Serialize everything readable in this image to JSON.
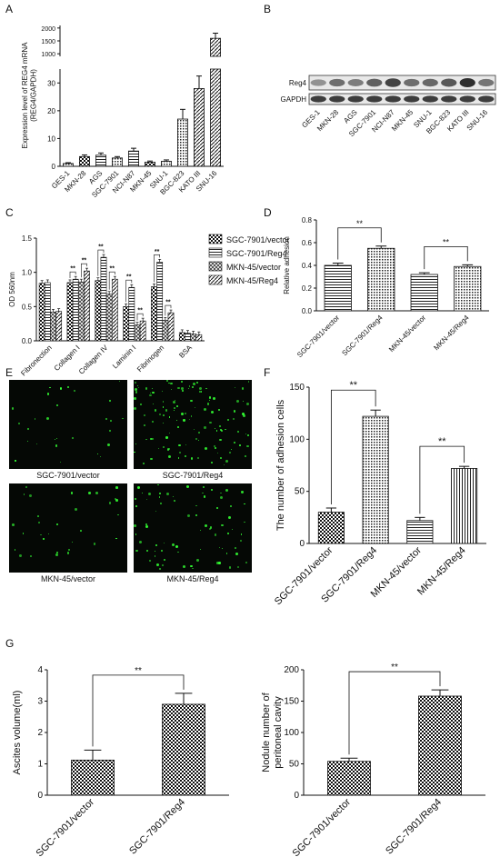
{
  "panels": {
    "A": "A",
    "B": "B",
    "C": "C",
    "D": "D",
    "E": "E",
    "F": "F",
    "G": "G"
  },
  "colors": {
    "ink": "#111111",
    "fluor_bg": "#050805",
    "fluor_cell": "#33ff33",
    "blot_band": "#1c1c1c"
  },
  "chart_data": [
    {
      "panel": "A",
      "type": "bar",
      "ylabel": "Expression level of REG4 mRNA (REG4/GAPDH)",
      "categories": [
        "GES-1",
        "MKN-28",
        "AGS",
        "SGC-7901",
        "NCI-N87",
        "MKN-45",
        "SNU-1",
        "BGC-823",
        "KATO III",
        "SNU-16"
      ],
      "values": [
        1,
        3.5,
        4,
        3,
        5.5,
        1.5,
        1.8,
        17,
        28,
        1600
      ],
      "errors": [
        0.3,
        0.6,
        0.8,
        0.5,
        1.0,
        0.4,
        0.5,
        3.5,
        4.5,
        200
      ],
      "y_ticks_lower": [
        0,
        10,
        20,
        30
      ],
      "y_ticks_upper": [
        1000,
        1500,
        2000
      ]
    },
    {
      "panel": "C",
      "type": "bar",
      "ylabel": "OD 560nm",
      "categories": [
        "Fibronection",
        "Collagen I",
        "Collagen IV",
        "Laminin I",
        "Fibrinogen",
        "BSA"
      ],
      "series": [
        {
          "name": "SGC-7901/vector",
          "values": [
            0.84,
            0.85,
            0.88,
            0.5,
            0.79,
            0.12
          ]
        },
        {
          "name": "SGC-7901/Reg4",
          "values": [
            0.85,
            0.9,
            1.22,
            0.78,
            1.15,
            0.11
          ]
        },
        {
          "name": "MKN-45/vector",
          "values": [
            0.42,
            0.86,
            0.68,
            0.23,
            0.3,
            0.1
          ]
        },
        {
          "name": "MKN-45/Reg4",
          "values": [
            0.43,
            1.02,
            0.9,
            0.29,
            0.41,
            0.09
          ]
        }
      ],
      "y_ticks": [
        0.0,
        0.5,
        1.0,
        1.5
      ],
      "ylim": [
        0,
        1.5
      ],
      "significance": "**"
    },
    {
      "panel": "D",
      "type": "bar",
      "ylabel": "Relative adhesion",
      "categories": [
        "SGC-7901/vector",
        "SGC-7901/Reg4",
        "MKN-45/vector",
        "MKN-45/Reg4"
      ],
      "values": [
        0.4,
        0.55,
        0.32,
        0.39
      ],
      "errors": [
        0.02,
        0.02,
        0.015,
        0.015
      ],
      "y_ticks": [
        "0.0",
        "0.2",
        "0.4",
        "0.6",
        "0.8"
      ],
      "ylim": [
        0,
        0.8
      ],
      "significance": "**"
    },
    {
      "panel": "F",
      "type": "bar",
      "ylabel": "The number of adhesion cells",
      "categories": [
        "SGC-7901/vector",
        "SGC-7901/Reg4",
        "MKN-45/vector",
        "MKN-45/Reg4"
      ],
      "values": [
        30,
        122,
        22,
        72
      ],
      "errors": [
        4,
        6,
        3,
        2
      ],
      "y_ticks": [
        0,
        50,
        100,
        150
      ],
      "ylim": [
        0,
        150
      ],
      "significance": "**"
    },
    {
      "panel": "G",
      "type": "bar",
      "ylabel": "Ascites volume(ml)",
      "categories": [
        "SGC-7901/vector",
        "SGC-7901/Reg4"
      ],
      "values": [
        1.12,
        2.9
      ],
      "errors": [
        0.32,
        0.35
      ],
      "y_ticks": [
        0,
        1,
        2,
        3,
        4
      ],
      "ylim": [
        0,
        4
      ],
      "significance": "**"
    },
    {
      "panel": "G",
      "type": "bar",
      "ylabel": "Nodule number of peritoneal cavity",
      "categories": [
        "SGC-7901/vector",
        "SGC-7901/Reg4"
      ],
      "values": [
        54,
        158
      ],
      "errors": [
        5,
        10
      ],
      "y_ticks": [
        0,
        50,
        100,
        150,
        200
      ],
      "ylim": [
        0,
        200
      ],
      "significance": "**"
    }
  ],
  "western_blot": {
    "rows": [
      "Reg4",
      "GAPDH"
    ],
    "lanes": [
      "GES-1",
      "MKN-28",
      "AGS",
      "SGC-7901",
      "NCI-N87",
      "MKN-45",
      "SNU-1",
      "BGC-823",
      "KATO III",
      "SNU-16"
    ],
    "reg4_intensity": [
      0.25,
      0.5,
      0.4,
      0.6,
      0.8,
      0.5,
      0.55,
      0.65,
      0.95,
      0.45
    ],
    "gapdh_intensity": [
      0.85,
      0.85,
      0.85,
      0.85,
      0.85,
      0.85,
      0.85,
      0.85,
      0.85,
      0.85
    ]
  },
  "micrographs": {
    "labels": [
      "SGC-7901/vector",
      "SGC-7901/Reg4",
      "MKN-45/vector",
      "MKN-45/Reg4"
    ],
    "cell_density": [
      0.2,
      0.9,
      0.22,
      0.55
    ]
  }
}
